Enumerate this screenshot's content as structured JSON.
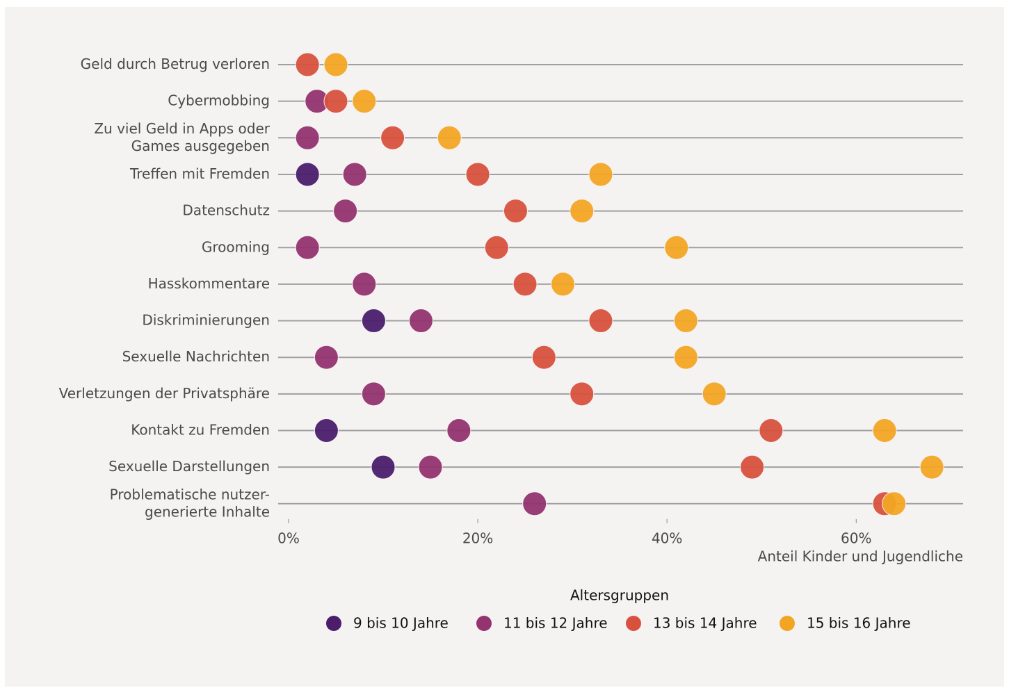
{
  "chart_data": {
    "type": "dot",
    "categories": [
      "Geld durch Betrug verloren",
      "Cybermobbing",
      "Zu viel Geld in Apps oder\nGames ausgegeben",
      "Treffen mit Fremden",
      "Datenschutz",
      "Grooming",
      "Hasskommentare",
      "Diskriminierungen",
      "Sexuelle Nachrichten",
      "Verletzungen der Privatsphäre",
      "Kontakt zu Fremden",
      "Sexuelle Darstellungen",
      "Problematische nutzer-\ngenerierte Inhalte"
    ],
    "series": [
      {
        "name": "9 bis 10 Jahre",
        "color": "#4b1d6c",
        "values": [
          null,
          null,
          null,
          2,
          null,
          null,
          null,
          9,
          null,
          null,
          4,
          10,
          null
        ]
      },
      {
        "name": "11 bis 12 Jahre",
        "color": "#93336f",
        "values": [
          null,
          3,
          2,
          7,
          6,
          2,
          8,
          14,
          4,
          9,
          18,
          15,
          26
        ]
      },
      {
        "name": "13 bis 14 Jahre",
        "color": "#d8513e",
        "values": [
          2,
          5,
          11,
          20,
          24,
          22,
          25,
          33,
          27,
          31,
          51,
          49,
          63
        ]
      },
      {
        "name": "15 bis 16 Jahre",
        "color": "#f2a523",
        "values": [
          5,
          8,
          17,
          33,
          31,
          41,
          29,
          42,
          42,
          45,
          63,
          68,
          64
        ]
      }
    ],
    "xlabel": "Anteil Kinder und Jugendliche",
    "legend_title": "Altersgruppen",
    "xlim": [
      -1.1,
      71.3
    ],
    "xticks": [
      {
        "value": 0,
        "label": "0%"
      },
      {
        "value": 20,
        "label": "20%"
      },
      {
        "value": 40,
        "label": "40%"
      },
      {
        "value": 60,
        "label": "60%"
      }
    ]
  }
}
